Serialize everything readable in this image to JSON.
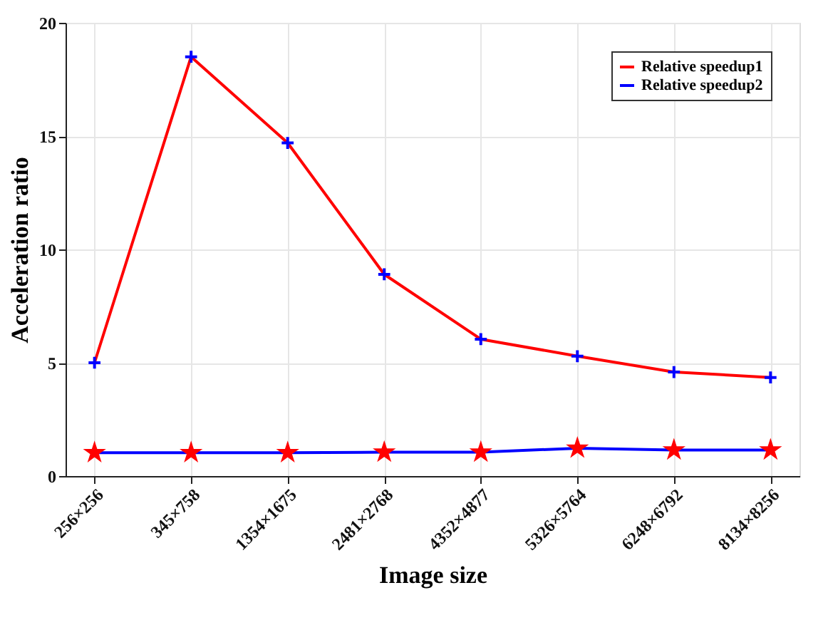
{
  "chart_data": {
    "type": "line",
    "xlabel": "Image size",
    "ylabel": "Acceleration ratio",
    "categories": [
      "256×256",
      "345×758",
      "1354×1675",
      "2481×2768",
      "4352×4877",
      "5326×5764",
      "6248×6792",
      "8134×8256"
    ],
    "ylim": [
      0,
      20
    ],
    "yticks": [
      0,
      5,
      10,
      15,
      20
    ],
    "grid": true,
    "legend": "top right",
    "series": [
      {
        "name": "Relative speedup1",
        "color": "#ff0000",
        "marker": "cross",
        "colors": [
          "#0000ff",
          "#0000ff",
          "#0000ff",
          "#0000ff",
          "#0000ff",
          "#0000ff",
          "#0000ff",
          "#0000ff"
        ],
        "values": [
          5.0,
          18.5,
          14.7,
          8.9,
          6.04,
          5.29,
          4.59,
          4.35
        ]
      },
      {
        "name": "Relative speedup2",
        "color": "#0000ff",
        "marker": "star",
        "colors": [
          "#ff0000",
          "#ff0000",
          "#ff0000",
          "#ff0000",
          "#ff0000",
          "#ff0000",
          "#ff0000",
          "#ff0000"
        ],
        "values": [
          1.03,
          1.03,
          1.03,
          1.05,
          1.05,
          1.23,
          1.15,
          1.15
        ]
      }
    ]
  }
}
